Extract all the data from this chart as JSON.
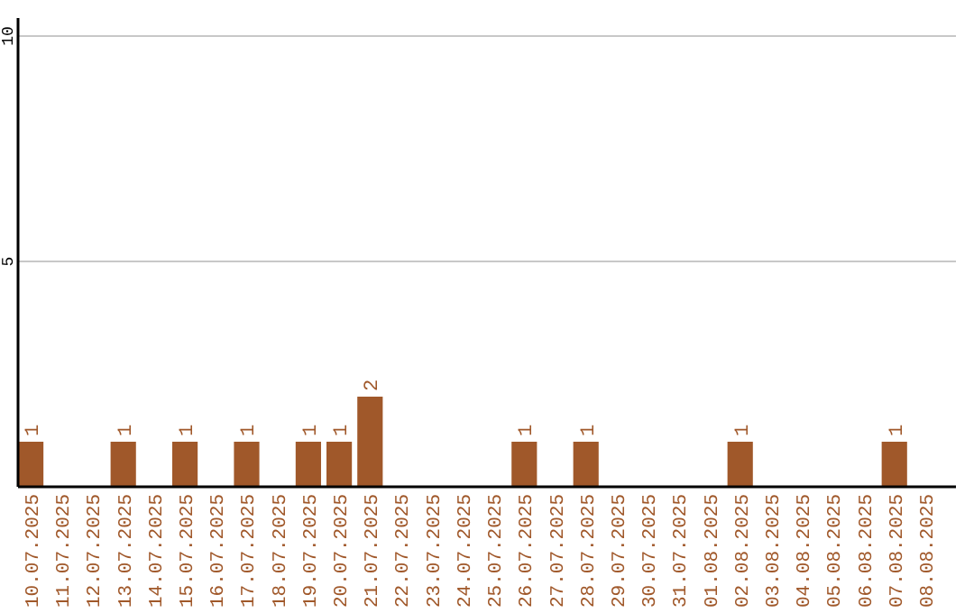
{
  "chart_data": {
    "type": "bar",
    "categories": [
      "10.07.2025",
      "11.07.2025",
      "12.07.2025",
      "13.07.2025",
      "14.07.2025",
      "15.07.2025",
      "16.07.2025",
      "17.07.2025",
      "18.07.2025",
      "19.07.2025",
      "20.07.2025",
      "21.07.2025",
      "22.07.2025",
      "23.07.2025",
      "24.07.2025",
      "25.07.2025",
      "26.07.2025",
      "27.07.2025",
      "28.07.2025",
      "29.07.2025",
      "30.07.2025",
      "31.07.2025",
      "01.08.2025",
      "02.08.2025",
      "03.08.2025",
      "04.08.2025",
      "05.08.2025",
      "06.08.2025",
      "07.08.2025",
      "08.08.2025"
    ],
    "values": [
      1,
      0,
      0,
      1,
      0,
      1,
      0,
      1,
      0,
      1,
      1,
      2,
      0,
      0,
      0,
      0,
      1,
      0,
      1,
      0,
      0,
      0,
      0,
      1,
      0,
      0,
      0,
      0,
      1,
      0
    ],
    "value_labels": [
      "1",
      null,
      null,
      "1",
      null,
      "1",
      null,
      "1",
      null,
      "1",
      "1",
      "2",
      null,
      null,
      null,
      null,
      "1",
      null,
      "1",
      null,
      null,
      null,
      null,
      "1",
      null,
      null,
      null,
      null,
      "1",
      null
    ],
    "color": "#a0582a",
    "ylim": [
      0,
      10.4
    ],
    "yticks": [
      5,
      10
    ],
    "grid": "y"
  }
}
